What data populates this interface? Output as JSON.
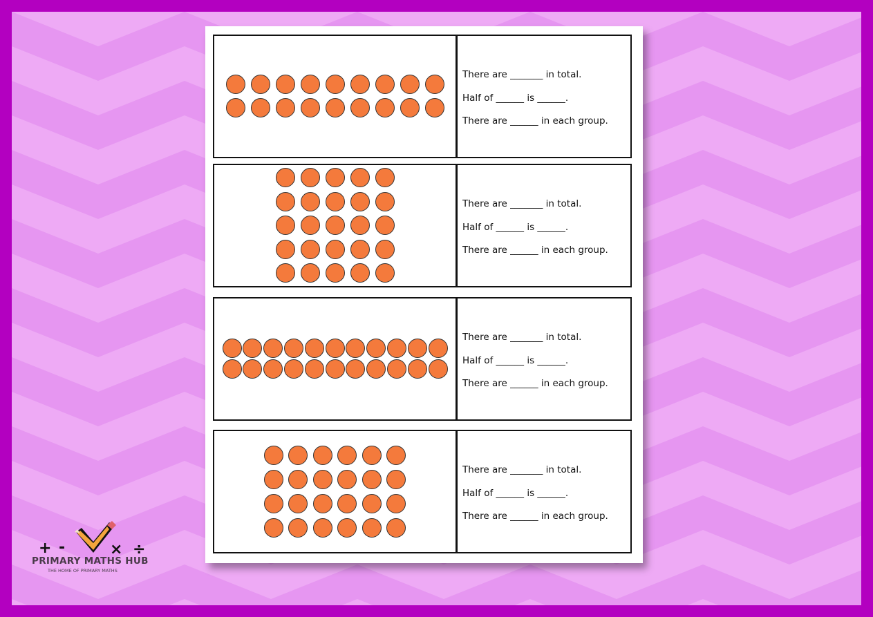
{
  "colors": {
    "frame": "#b300c0",
    "background": "#eeaaf5",
    "chevron": "#e696f1",
    "counter": "#f47a3c"
  },
  "cards": [
    {
      "rows": 2,
      "cols": 9,
      "line1": "There are _______ in total.",
      "line2": "Half of ______ is ______.",
      "line3": "There are ______ in each group."
    },
    {
      "rows": 5,
      "cols": 5,
      "line1": "There are _______ in total.",
      "line2": "Half of ______ is ______.",
      "line3": "There are ______ in each group."
    },
    {
      "rows": 2,
      "cols": 11,
      "line1": "There are _______ in total.",
      "line2": "Half of ______ is ______.",
      "line3": "There are ______ in each group."
    },
    {
      "rows": 4,
      "cols": 6,
      "line1": "There are _______ in total.",
      "line2": "Half of ______ is ______.",
      "line3": "There are ______ in each group."
    }
  ],
  "logo": {
    "title": "PRIMARY MATHS HUB",
    "subtitle": "THE HOME OF PRIMARY MATHS",
    "symbols": [
      "+",
      "-",
      "×",
      "÷"
    ]
  }
}
